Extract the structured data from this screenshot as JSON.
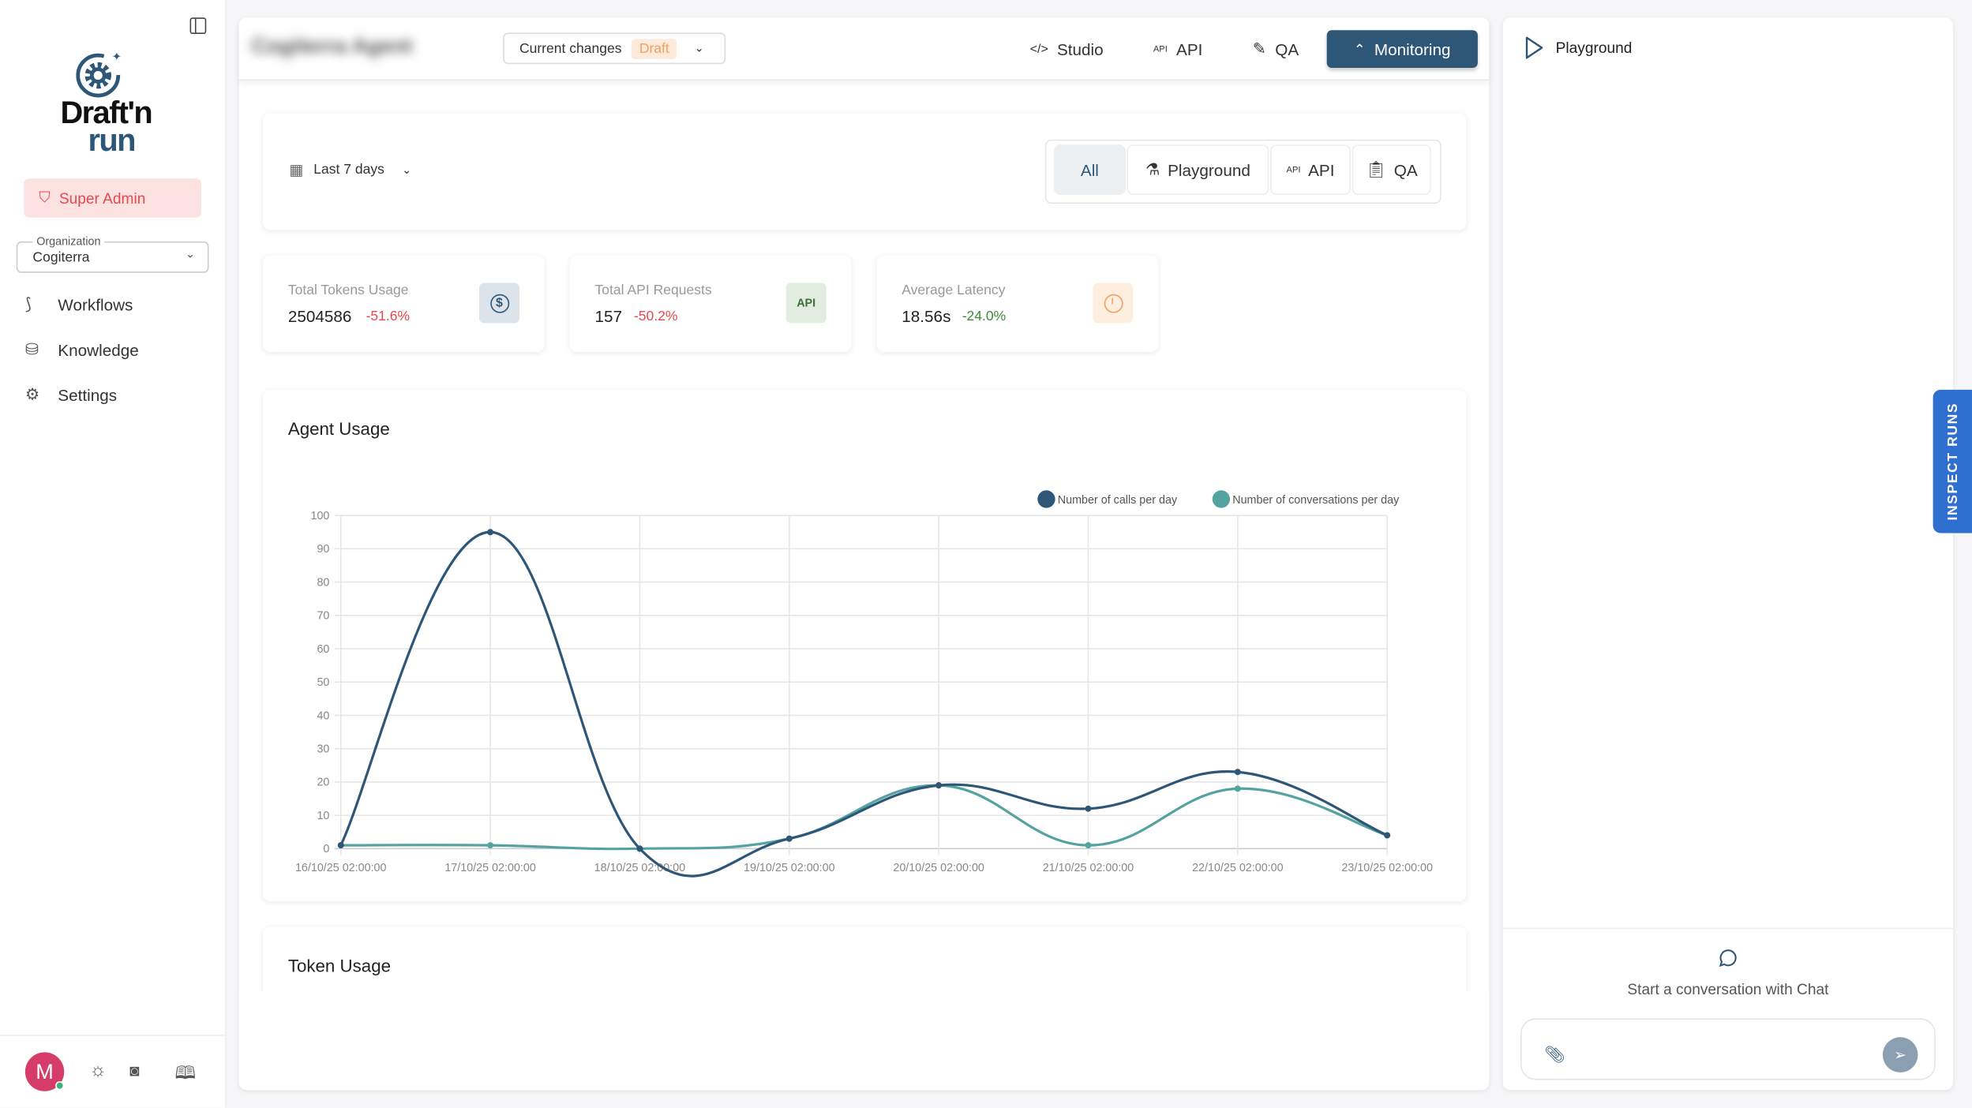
{
  "sidebar": {
    "logo_line1": "Draft'n",
    "logo_line2": "run",
    "role_badge": "Super Admin",
    "org_label": "Organization",
    "org_value": "Cogiterra",
    "items": [
      {
        "label": "Workflows",
        "icon": "workflow-icon"
      },
      {
        "label": "Knowledge",
        "icon": "database-icon"
      },
      {
        "label": "Settings",
        "icon": "gear-icon"
      }
    ],
    "avatar_initial": "M"
  },
  "header": {
    "agent_name": "Cogiterra Agent",
    "version_label": "Current changes",
    "version_badge": "Draft",
    "tabs": [
      {
        "label": "Studio",
        "icon": "code-icon"
      },
      {
        "label": "API",
        "icon": "api-icon"
      },
      {
        "label": "QA",
        "icon": "flask-pen-icon"
      },
      {
        "label": "Monitoring",
        "icon": "chart-line-icon",
        "active": true
      }
    ]
  },
  "filters": {
    "date_range": "Last 7 days",
    "segments": [
      {
        "label": "All",
        "active": true
      },
      {
        "label": "Playground",
        "icon": "flask-icon"
      },
      {
        "label": "API",
        "icon": "api-icon"
      },
      {
        "label": "QA",
        "icon": "clipboard-check-icon"
      }
    ]
  },
  "kpis": [
    {
      "label": "Total Tokens Usage",
      "value": "2504586",
      "delta": "-51.6%",
      "delta_color": "#e5484d",
      "icon": "dollar-icon",
      "icon_bg": "#dde3ea"
    },
    {
      "label": "Total API Requests",
      "value": "157",
      "delta": "-50.2%",
      "delta_color": "#e5484d",
      "icon": "API",
      "icon_bg": "#e2ece1"
    },
    {
      "label": "Average Latency",
      "value": "18.56s",
      "delta": "-24.0%",
      "delta_color": "#3f8a3a",
      "icon": "clock-icon",
      "icon_bg": "#fdeee0"
    }
  ],
  "usage_title": "Agent Usage",
  "token_title": "Token Usage",
  "chart_data": {
    "type": "line",
    "title": "",
    "xlabel": "",
    "ylabel": "",
    "ylim": [
      0,
      100
    ],
    "grid": true,
    "legend": "top-right",
    "categories": [
      "16/10/25 02:00:00",
      "17/10/25 02:00:00",
      "18/10/25 02:00:00",
      "19/10/25 02:00:00",
      "20/10/25 02:00:00",
      "21/10/25 02:00:00",
      "22/10/25 02:00:00",
      "23/10/25 02:00:00"
    ],
    "yticks": [
      0,
      10,
      20,
      30,
      40,
      50,
      60,
      70,
      80,
      90,
      100
    ],
    "series": [
      {
        "name": "Number of calls per day",
        "color": "#2d5677",
        "values": [
          1,
          95,
          0,
          3,
          19,
          12,
          23,
          4
        ]
      },
      {
        "name": "Number of conversations per day",
        "color": "#55a3a0",
        "values": [
          1,
          1,
          0,
          3,
          19,
          1,
          18,
          4
        ]
      }
    ]
  },
  "playground": {
    "title": "Playground",
    "empty_text": "Start a conversation with Chat",
    "inspect_tab": "INSPECT RUNS"
  }
}
